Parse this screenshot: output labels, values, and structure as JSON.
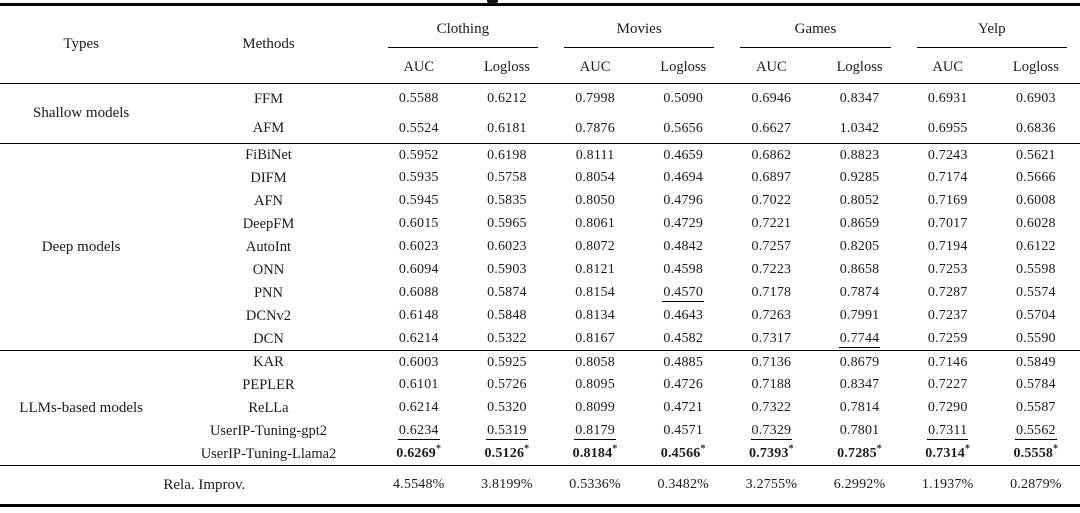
{
  "header": {
    "types": "Types",
    "methods": "Methods",
    "groups": [
      {
        "label": "Clothing"
      },
      {
        "label": "Movies"
      },
      {
        "label": "Games"
      },
      {
        "label": "Yelp"
      }
    ],
    "metrics": [
      "AUC",
      "Logloss"
    ]
  },
  "significance_marker": "*",
  "colors": {
    "text": "#1b1b1b",
    "rule": "#000000",
    "background": "#ffffff"
  },
  "sections": [
    {
      "type": "Shallow models",
      "css": "sec-shallow",
      "rows": [
        {
          "method": "FFM",
          "values": [
            "0.5588",
            "0.6212",
            "0.7998",
            "0.5090",
            "0.6946",
            "0.8347",
            "0.6931",
            "0.6903"
          ]
        },
        {
          "method": "AFM",
          "values": [
            "0.5524",
            "0.6181",
            "0.7876",
            "0.5656",
            "0.6627",
            "1.0342",
            "0.6955",
            "0.6836"
          ]
        }
      ]
    },
    {
      "type": "Deep models",
      "css": "sec-deep",
      "rows": [
        {
          "method": "FiBiNet",
          "values": [
            "0.5952",
            "0.6198",
            "0.8111",
            "0.4659",
            "0.6862",
            "0.8823",
            "0.7243",
            "0.5621"
          ]
        },
        {
          "method": "DIFM",
          "values": [
            "0.5935",
            "0.5758",
            "0.8054",
            "0.4694",
            "0.6897",
            "0.9285",
            "0.7174",
            "0.5666"
          ]
        },
        {
          "method": "AFN",
          "values": [
            "0.5945",
            "0.5835",
            "0.8050",
            "0.4796",
            "0.7022",
            "0.8052",
            "0.7169",
            "0.6008"
          ]
        },
        {
          "method": "DeepFM",
          "values": [
            "0.6015",
            "0.5965",
            "0.8061",
            "0.4729",
            "0.7221",
            "0.8659",
            "0.7017",
            "0.6028"
          ]
        },
        {
          "method": "AutoInt",
          "values": [
            "0.6023",
            "0.6023",
            "0.8072",
            "0.4842",
            "0.7257",
            "0.8205",
            "0.7194",
            "0.6122"
          ]
        },
        {
          "method": "ONN",
          "values": [
            "0.6094",
            "0.5903",
            "0.8121",
            "0.4598",
            "0.7223",
            "0.8658",
            "0.7253",
            "0.5598"
          ]
        },
        {
          "method": "PNN",
          "values": [
            "0.6088",
            "0.5874",
            "0.8154",
            "0.4570",
            "0.7178",
            "0.7874",
            "0.7287",
            "0.5574"
          ],
          "underline": [
            3
          ]
        },
        {
          "method": "DCNv2",
          "values": [
            "0.6148",
            "0.5848",
            "0.8134",
            "0.4643",
            "0.7263",
            "0.7991",
            "0.7237",
            "0.5704"
          ]
        },
        {
          "method": "DCN",
          "values": [
            "0.6214",
            "0.5322",
            "0.8167",
            "0.4582",
            "0.7317",
            "0.7744",
            "0.7259",
            "0.5590"
          ],
          "underline": [
            5
          ]
        }
      ]
    },
    {
      "type": "LLMs-based models",
      "css": "sec-llm",
      "rows": [
        {
          "method": "KAR",
          "values": [
            "0.6003",
            "0.5925",
            "0.8058",
            "0.4885",
            "0.7136",
            "0.8679",
            "0.7146",
            "0.5849"
          ]
        },
        {
          "method": "PEPLER",
          "values": [
            "0.6101",
            "0.5726",
            "0.8095",
            "0.4726",
            "0.7188",
            "0.8347",
            "0.7227",
            "0.5784"
          ]
        },
        {
          "method": "ReLLa",
          "values": [
            "0.6214",
            "0.5320",
            "0.8099",
            "0.4721",
            "0.7322",
            "0.7814",
            "0.7290",
            "0.5587"
          ]
        },
        {
          "method": "UserIP-Tuning-gpt2",
          "values": [
            "0.6234",
            "0.5319",
            "0.8179",
            "0.4571",
            "0.7329",
            "0.7801",
            "0.7311",
            "0.5562"
          ],
          "underline": [
            0,
            1,
            2,
            4,
            6,
            7
          ]
        },
        {
          "method": "UserIP-Tuning-Llama2",
          "values": [
            "0.6269",
            "0.5126",
            "0.8184",
            "0.4566",
            "0.7393",
            "0.7285",
            "0.7314",
            "0.5558"
          ],
          "bold": true,
          "star": true
        }
      ]
    }
  ],
  "footer": {
    "label": "Rela. Improv.",
    "values": [
      "4.5548%",
      "3.8199%",
      "0.5336%",
      "0.3482%",
      "3.2755%",
      "6.2992%",
      "1.1937%",
      "0.2879%"
    ]
  }
}
